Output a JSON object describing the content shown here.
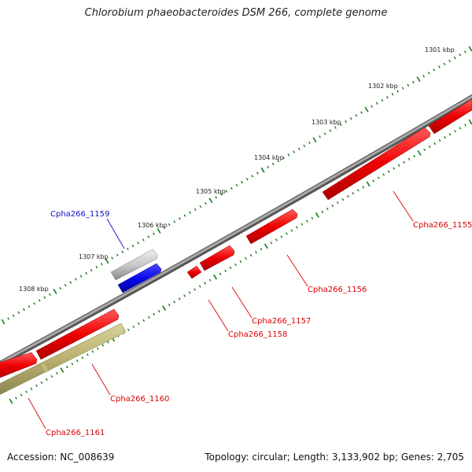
{
  "header": {
    "title": "Chlorobium phaeobacteroides DSM 266, complete genome"
  },
  "footer": {
    "accession": "Accession: NC_008639",
    "summary": "Topology: circular; Length: 3,133,902 bp; Genes: 2,705"
  },
  "scale": {
    "labels": [
      "1301 kbp",
      "1302 kbp",
      "1303 kbp",
      "1304 kbp",
      "1305 kbp",
      "1306 kbp",
      "1307 kbp",
      "1308 kbp"
    ],
    "tick_color": "#1a7a1a"
  },
  "genes": [
    {
      "id": "Cpha266_1155",
      "color": "#dd0000"
    },
    {
      "id": "Cpha266_1156",
      "color": "#dd0000"
    },
    {
      "id": "Cpha266_1157",
      "color": "#dd0000"
    },
    {
      "id": "Cpha266_1158",
      "color": "#dd0000"
    },
    {
      "id": "Cpha266_1159",
      "color": "#1010cc"
    },
    {
      "id": "Cpha266_1160",
      "color": "#dd0000"
    },
    {
      "id": "Cpha266_1161",
      "color": "#dd0000"
    }
  ],
  "colors": {
    "backbone": "#808080",
    "forward_gene": "#ee0000",
    "selected_gene": "#0a0aee",
    "pseudo_gene": "#bdbdbd",
    "olive_feature": "#b8b070"
  }
}
